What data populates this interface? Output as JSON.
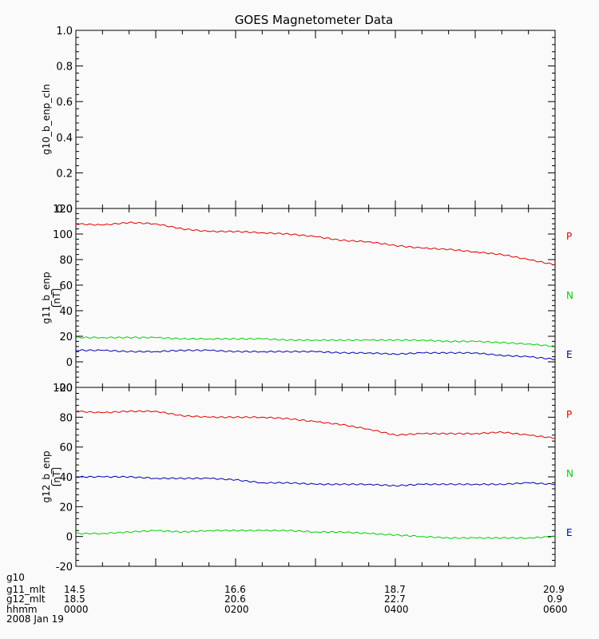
{
  "chart_data": [
    {
      "type": "line",
      "title": "GOES Magnetometer Data",
      "ylabel": "g10_b_enp_cln",
      "yunit": "",
      "ylim": [
        0,
        1.0
      ],
      "yticks": [
        "0.0",
        "0.2",
        "0.4",
        "0.6",
        "0.8",
        "1.0"
      ],
      "series": []
    },
    {
      "type": "line",
      "ylabel": "g11_b_enp",
      "yunit": "[nT]",
      "ylim": [
        -20,
        120
      ],
      "yticks": [
        "-20",
        "0",
        "20",
        "40",
        "60",
        "80",
        "100",
        "120"
      ],
      "x": [
        "0000",
        "0020",
        "0040",
        "0100",
        "0120",
        "0140",
        "0200",
        "0220",
        "0240",
        "0300",
        "0320",
        "0340",
        "0400",
        "0420",
        "0440",
        "0500",
        "0520",
        "0540",
        "0600"
      ],
      "series": [
        {
          "name": "P",
          "color": "#e00000",
          "values": [
            108,
            107,
            109,
            108,
            104,
            102,
            102,
            101,
            100,
            98,
            95,
            94,
            91,
            89,
            88,
            86,
            84,
            80,
            76
          ]
        },
        {
          "name": "N",
          "color": "#00d000",
          "values": [
            19,
            19,
            19,
            19,
            18,
            18,
            18,
            18,
            17,
            17,
            17,
            17,
            17,
            17,
            16,
            16,
            15,
            14,
            12
          ]
        },
        {
          "name": "E",
          "color": "#0000b0",
          "values": [
            9,
            9,
            8,
            8,
            9,
            9,
            8,
            8,
            8,
            8,
            7,
            7,
            6,
            7,
            7,
            7,
            5,
            4,
            2
          ]
        }
      ]
    },
    {
      "type": "line",
      "ylabel": "g12_b_enp",
      "yunit": "[nT]",
      "ylim": [
        -20,
        100
      ],
      "yticks": [
        "-20",
        "0",
        "20",
        "40",
        "60",
        "80",
        "100"
      ],
      "x": [
        "0000",
        "0020",
        "0040",
        "0100",
        "0120",
        "0140",
        "0200",
        "0220",
        "0240",
        "0300",
        "0320",
        "0340",
        "0400",
        "0420",
        "0440",
        "0500",
        "0520",
        "0540",
        "0600"
      ],
      "series": [
        {
          "name": "P",
          "color": "#e00000",
          "values": [
            84,
            83,
            84,
            84,
            81,
            80,
            80,
            80,
            79,
            77,
            75,
            72,
            68,
            69,
            69,
            69,
            70,
            68,
            66
          ]
        },
        {
          "name": "N",
          "color": "#00d000",
          "values": [
            2,
            2,
            3,
            4,
            3,
            4,
            4,
            4,
            4,
            3,
            3,
            2,
            1,
            0,
            -1,
            -1,
            -1,
            -1,
            0
          ]
        },
        {
          "name": "E",
          "color": "#0000b0",
          "values": [
            40,
            40,
            40,
            39,
            39,
            39,
            38,
            36,
            36,
            35,
            35,
            35,
            34,
            35,
            35,
            35,
            35,
            36,
            35
          ]
        }
      ]
    }
  ],
  "time_axis": {
    "rows": [
      {
        "label": "g10",
        "values": [
          "",
          "",
          "",
          ""
        ]
      },
      {
        "label": "g11_mlt",
        "values": [
          "14.5",
          "16.6",
          "18.7",
          "20.9"
        ]
      },
      {
        "label": "g12_mlt",
        "values": [
          "18.5",
          "20.6",
          "22.7",
          "0.9"
        ]
      },
      {
        "label": "hhmm",
        "values": [
          "0000",
          "0200",
          "0400",
          "0600"
        ]
      }
    ],
    "date": "2008 Jan 19"
  }
}
